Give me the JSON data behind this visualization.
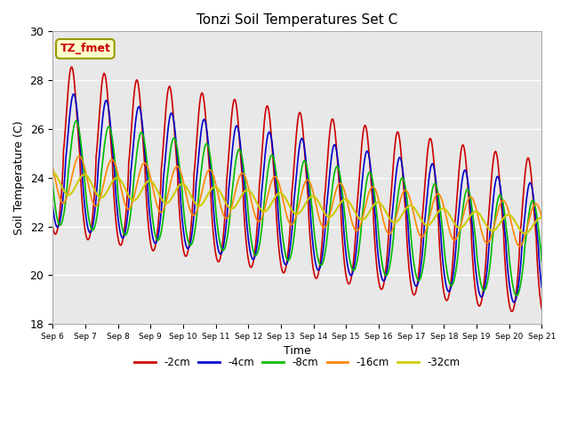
{
  "title": "Tonzi Soil Temperatures Set C",
  "xlabel": "Time",
  "ylabel": "Soil Temperature (C)",
  "ylim": [
    18,
    30
  ],
  "bg_color": "#e8e8e8",
  "fig_color": "#ffffff",
  "series_labels": [
    "-2cm",
    "-4cm",
    "-8cm",
    "-16cm",
    "-32cm"
  ],
  "series_colors": [
    "#cc0000",
    "#0000cc",
    "#00bb00",
    "#ff8800",
    "#cccc00"
  ],
  "line_widths": [
    1.2,
    1.2,
    1.2,
    1.2,
    1.5
  ],
  "annotation_text": "TZ_fmet",
  "annotation_bg": "#ffffcc",
  "annotation_border": "#999900",
  "annotation_color": "#cc0000",
  "yticks": [
    18,
    20,
    22,
    24,
    26,
    28,
    30
  ],
  "grid_color": "#ffffff",
  "num_days": 15,
  "start_day": 6
}
